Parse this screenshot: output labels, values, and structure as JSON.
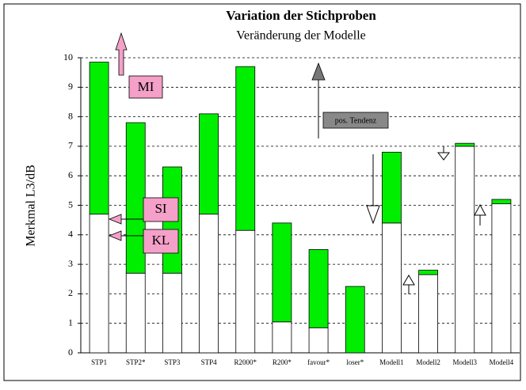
{
  "chart_data": {
    "type": "stacked_bar",
    "title": "Variation der Stichproben",
    "subtitle": "Veränderung der Modelle",
    "y_label": "Merkmal L3/dB",
    "categories": [
      "STP1",
      "STP2*",
      "STP3",
      "STP4",
      "R2000*",
      "R200*",
      "favour*",
      "loser*",
      "Modell1",
      "Modell2",
      "Modell3",
      "Modell4"
    ],
    "series": [
      {
        "color": "#ffffff",
        "values": [
          4.7,
          2.7,
          2.7,
          4.7,
          4.15,
          1.05,
          0.85,
          0,
          4.4,
          2.65,
          7.0,
          5.05
        ]
      },
      {
        "color": "#00ee00",
        "values": [
          5.15,
          5.1,
          3.6,
          3.4,
          5.55,
          3.35,
          2.65,
          2.25,
          2.4,
          0.15,
          0.1,
          0.15
        ]
      }
    ],
    "ylim": [
      0,
      10
    ],
    "yticks": [
      0,
      1,
      2,
      3,
      4,
      5,
      6,
      7,
      8,
      9,
      10
    ],
    "grid": true,
    "annotations": [
      "MI",
      "SI",
      "KL",
      "pos. Tendenz"
    ]
  }
}
